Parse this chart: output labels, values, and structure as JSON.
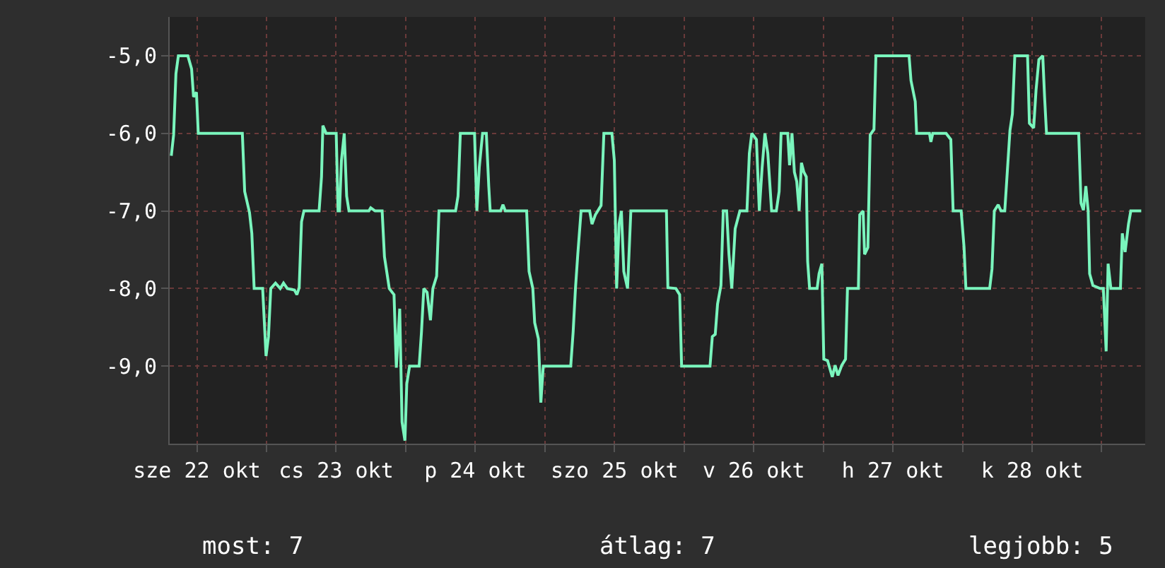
{
  "chart_data": {
    "type": "line",
    "x": [
      "--10-22T07:35",
      "--10-22T07:59",
      "--10-22T08:23",
      "--10-22T08:48",
      "--10-22T10:26",
      "--10-22T11:05",
      "--10-22T11:25",
      "--10-22T11:55",
      "--10-22T12:14",
      "--10-22T19:50",
      "--10-22T20:14",
      "--10-22T21:04",
      "--10-22T21:28",
      "--10-22T21:52",
      "--10-22T23:20",
      "--10-22T23:55",
      "--10-23T00:20",
      "--10-23T00:44",
      "--10-23T01:33",
      "--10-23T02:22",
      "--10-23T02:56",
      "--10-23T03:35",
      "--10-23T04:49",
      "--10-23T05:14",
      "--10-23T05:38",
      "--10-23T06:02",
      "--10-23T06:27",
      "--10-23T09:04",
      "--10-23T09:29",
      "--10-23T09:43",
      "--10-23T10:17",
      "--10-23T12:01",
      "--10-23T12:20",
      "--10-23T12:35",
      "--10-23T12:55",
      "--10-23T13:24",
      "--10-23T13:49",
      "--10-23T14:13",
      "--10-23T17:39",
      "--10-23T17:58",
      "--10-23T18:43",
      "--10-23T19:56",
      "--10-23T20:20",
      "--10-23T21:10",
      "--10-23T21:59",
      "--10-23T22:23",
      "--10-23T22:58",
      "--10-23T23:22",
      "--10-23T23:52",
      "--10-24T00:11",
      "--10-24T00:40",
      "--10-24T02:19",
      "--10-24T02:43",
      "--10-24T03:07",
      "--10-24T03:41",
      "--10-24T04:16",
      "--10-24T04:41",
      "--10-24T05:20",
      "--10-24T05:44",
      "--10-24T08:36",
      "--10-24T09:01",
      "--10-24T09:25",
      "--10-24T11:52",
      "--10-24T12:16",
      "--10-24T12:41",
      "--10-24T13:15",
      "--10-24T13:54",
      "--10-24T14:19",
      "--10-24T14:34",
      "--10-24T16:22",
      "--10-24T16:46",
      "--10-24T17:10",
      "--10-24T20:51",
      "--10-24T21:16",
      "--10-24T21:55",
      "--10-24T22:14",
      "--10-24T22:53",
      "--10-24T23:18",
      "--10-24T23:43",
      "--10-25T04:27",
      "--10-25T04:52",
      "--10-25T05:16",
      "--10-25T05:40",
      "--10-25T06:14",
      "--10-25T07:43",
      "--10-25T08:07",
      "--10-25T08:42",
      "--10-25T09:41",
      "--10-25T10:10",
      "--10-25T11:33",
      "--10-25T11:58",
      "--10-25T12:22",
      "--10-25T12:47",
      "--10-25T13:11",
      "--10-25T13:36",
      "--10-25T14:15",
      "--10-25T14:49",
      "--10-25T20:57",
      "--10-25T21:12",
      "--10-25T22:35",
      "--10-25T23:14",
      "--10-25T23:34",
      "--10-26T04:28",
      "--10-26T04:52",
      "--10-26T05:22",
      "--10-26T05:46",
      "--10-26T06:21",
      "--10-26T06:45",
      "--10-26T07:20",
      "--10-26T07:44",
      "--10-26T08:13",
      "--10-26T08:48",
      "--10-26T09:37",
      "--10-26T10:50",
      "--10-26T11:15",
      "--10-26T11:40",
      "--10-26T12:28",
      "--10-26T12:58",
      "--10-26T13:27",
      "--10-26T13:56",
      "--10-26T14:26",
      "--10-26T15:05",
      "--10-26T15:54",
      "--10-26T16:23",
      "--10-26T16:43",
      "--10-26T17:52",
      "--10-26T18:11",
      "--10-26T18:36",
      "--10-26T19:01",
      "--10-26T19:25",
      "--10-26T19:50",
      "--10-26T20:14",
      "--10-26T20:39",
      "--10-26T21:04",
      "--10-26T21:18",
      "--10-26T21:38",
      "--10-26T22:56",
      "--10-26T23:16",
      "--10-26T23:45",
      "--10-27T00:05",
      "--10-27T00:44",
      "--10-27T01:33",
      "--10-27T02:02",
      "--10-27T02:32",
      "--10-27T03:11",
      "--10-27T03:50",
      "--10-27T04:10",
      "--10-27T06:03",
      "--10-27T06:17",
      "--10-27T06:52",
      "--10-27T07:07",
      "--10-27T07:41",
      "--10-27T08:05",
      "--10-27T08:44",
      "--10-27T09:04",
      "--10-27T14:47",
      "--10-27T15:07",
      "--10-27T15:51",
      "--10-27T16:05",
      "--10-27T18:18",
      "--10-27T18:33",
      "--10-27T18:52",
      "--10-27T21:10",
      "--10-27T21:59",
      "--10-27T22:23",
      "--10-27T23:46",
      "--10-28T00:16",
      "--10-28T00:35",
      "--10-28T04:41",
      "--10-28T05:05",
      "--10-28T05:29",
      "--10-28T06:09",
      "--10-28T06:38",
      "--10-28T07:17",
      "--10-28T07:37",
      "--10-28T08:11",
      "--10-28T08:36",
      "--10-28T09:01",
      "--10-28T11:13",
      "--10-28T11:32",
      "--10-28T12:16",
      "--10-28T12:41",
      "--10-28T13:10",
      "--10-28T13:50",
      "--10-28T14:09",
      "--10-28T14:29",
      "--10-28T20:02",
      "--10-28T20:26",
      "--10-28T20:51",
      "--10-28T21:16",
      "--10-28T21:40",
      "--10-28T21:55",
      "--10-28T22:29",
      "--10-28T23:43",
      "--10-29T00:17",
      "--10-29T00:46",
      "--10-29T01:06",
      "--10-29T01:35",
      "--10-29T03:14",
      "--10-29T03:33",
      "--10-29T04:02",
      "--10-29T04:37",
      "--10-29T05:01",
      "--10-29T06:49"
    ],
    "series": [
      {
        "color": "#7af5bd",
        "values": [
          -6.29,
          -6.02,
          -5.23,
          -5,
          -5,
          -5.17,
          -5.53,
          -5.47,
          -6,
          -6,
          -6.75,
          -7.02,
          -7.29,
          -8,
          -8,
          -8.87,
          -8.62,
          -8,
          -7.93,
          -8,
          -7.93,
          -8,
          -8.02,
          -8.08,
          -7.99,
          -7.14,
          -7,
          -7,
          -6.56,
          -5.9,
          -6,
          -6,
          -7,
          -7,
          -6.35,
          -6,
          -6.81,
          -7,
          -7,
          -6.96,
          -7,
          -7,
          -7.59,
          -8,
          -8.08,
          -9.02,
          -8.26,
          -9.72,
          -9.96,
          -9.23,
          -9,
          -9,
          -8.56,
          -8,
          -8.05,
          -8.41,
          -8,
          -7.84,
          -7,
          -7,
          -6.81,
          -6,
          -6,
          -7,
          -6.44,
          -6,
          -6,
          -6.68,
          -7,
          -7,
          -6.92,
          -7,
          -7,
          -7.78,
          -8,
          -8.44,
          -8.65,
          -9.47,
          -9,
          -9,
          -8.56,
          -8,
          -7.56,
          -7,
          -7,
          -7.17,
          -7.05,
          -6.93,
          -6,
          -6,
          -6.35,
          -8,
          -7.17,
          -7,
          -7.78,
          -8,
          -7,
          -7,
          -7.99,
          -8,
          -8.08,
          -9,
          -9,
          -8.62,
          -8.59,
          -8.2,
          -7.96,
          -7,
          -7,
          -7.56,
          -8,
          -7.23,
          -7,
          -7,
          -6.26,
          -6,
          -6.08,
          -7,
          -6.44,
          -6,
          -6.26,
          -7,
          -7,
          -6.75,
          -6,
          -6,
          -6.41,
          -6,
          -6.5,
          -6.62,
          -7,
          -6.38,
          -6.5,
          -6.56,
          -7.65,
          -8,
          -8,
          -7.81,
          -7.68,
          -8.91,
          -8.93,
          -9.14,
          -8.99,
          -9.12,
          -8.99,
          -8.91,
          -8,
          -8,
          -7.05,
          -7,
          -7.56,
          -7.47,
          -6.02,
          -5.95,
          -5,
          -5,
          -5.32,
          -5.59,
          -6,
          -6,
          -6.11,
          -6,
          -6,
          -6.08,
          -7,
          -7,
          -7.47,
          -8,
          -8,
          -7.75,
          -7,
          -6.92,
          -7,
          -7,
          -6.62,
          -5.96,
          -5.75,
          -5,
          -5,
          -5.87,
          -5.93,
          -5.44,
          -5.05,
          -5,
          -5.53,
          -6,
          -6,
          -6.9,
          -6.99,
          -6.68,
          -7,
          -7.81,
          -7.96,
          -8,
          -8,
          -8.81,
          -7.68,
          -8,
          -8,
          -7.29,
          -7.53,
          -7.17,
          -7,
          -7
        ]
      }
    ],
    "xlim": [
      "--10-22T07:18",
      "--10-29T07:30"
    ],
    "xticks": [
      {
        "value": "--10-22T12:00",
        "label": "sze 22 okt"
      },
      {
        "value": "--10-23",
        "label": null
      },
      {
        "value": "--10-23T12:00",
        "label": "cs 23 okt"
      },
      {
        "value": "--10-24",
        "label": null
      },
      {
        "value": "--10-24T12:00",
        "label": "p 24 okt"
      },
      {
        "value": "--10-25",
        "label": null
      },
      {
        "value": "--10-25T12:00",
        "label": "szo 25 okt"
      },
      {
        "value": "--10-26",
        "label": null
      },
      {
        "value": "--10-26T12:00",
        "label": "v 26 okt"
      },
      {
        "value": "--10-27",
        "label": null
      },
      {
        "value": "--10-27T12:00",
        "label": "h 27 okt"
      },
      {
        "value": "--10-28",
        "label": null
      },
      {
        "value": "--10-28T12:00",
        "label": "k 28 okt"
      },
      {
        "value": "--10-29",
        "label": null
      }
    ],
    "ylim": [
      -10,
      -4.5
    ],
    "yticks": [
      {
        "value": -5,
        "label": "-5,0"
      },
      {
        "value": -6,
        "label": "-6,0"
      },
      {
        "value": -7,
        "label": "-7,0"
      },
      {
        "value": -8,
        "label": "-8,0"
      },
      {
        "value": -9,
        "label": "-9,0"
      }
    ],
    "grid": true,
    "marker": "none",
    "line_style": "solid",
    "annotations": [
      "most: 7",
      "átlag: 7",
      "legjobb: 5"
    ]
  }
}
